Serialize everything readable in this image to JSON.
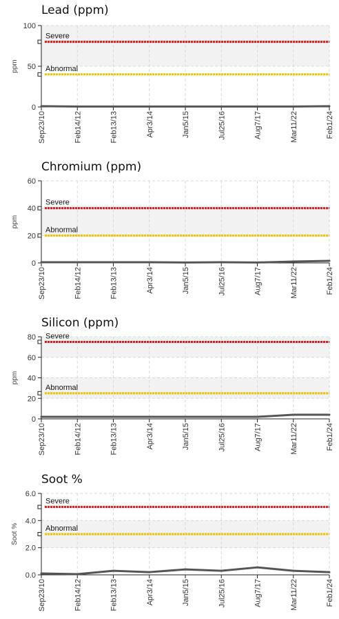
{
  "x_dates": [
    "Sep23/10",
    "Feb14/12",
    "Feb13/13",
    "Apr3/14",
    "Jan5/15",
    "Jul25/16",
    "Aug7/17",
    "Mar11/22",
    "Feb1/24"
  ],
  "colors": {
    "severe": "#e8161b",
    "abnormal": "#f2c200",
    "series": "#555555",
    "band": "#f2f2f2",
    "grid": "#d8d8d8"
  },
  "chart_data": [
    {
      "type": "line",
      "title": "Lead (ppm)",
      "ylabel": "ppm",
      "ylim": [
        0,
        100
      ],
      "yticks": [
        "0",
        "50",
        "100"
      ],
      "ytick_values": [
        0,
        50,
        100
      ],
      "categories": [
        "Sep23/10",
        "Feb14/12",
        "Feb13/13",
        "Apr3/14",
        "Jan5/15",
        "Jul25/16",
        "Aug7/17",
        "Mar11/22",
        "Feb1/24"
      ],
      "series": [
        {
          "values": [
            1,
            0.5,
            0.5,
            0.5,
            0.5,
            0.5,
            0.5,
            0.5,
            1
          ]
        }
      ],
      "thresholds": [
        {
          "label": "Severe",
          "value": 80,
          "level": "severe"
        },
        {
          "label": "Abnormal",
          "value": 40,
          "level": "abnormal"
        }
      ]
    },
    {
      "type": "line",
      "title": "Chromium (ppm)",
      "ylabel": "ppm",
      "ylim": [
        0,
        60
      ],
      "yticks": [
        "0",
        "20",
        "40",
        "60"
      ],
      "ytick_values": [
        0,
        20,
        40,
        60
      ],
      "categories": [
        "Sep23/10",
        "Feb14/12",
        "Feb13/13",
        "Apr3/14",
        "Jan5/15",
        "Jul25/16",
        "Aug7/17",
        "Mar11/22",
        "Feb1/24"
      ],
      "series": [
        {
          "values": [
            0.5,
            0.5,
            0.5,
            0.5,
            0.3,
            0.5,
            0.3,
            1,
            1.5
          ]
        }
      ],
      "thresholds": [
        {
          "label": "Severe",
          "value": 40,
          "level": "severe"
        },
        {
          "label": "Abnormal",
          "value": 20,
          "level": "abnormal"
        }
      ]
    },
    {
      "type": "line",
      "title": "Silicon (ppm)",
      "ylabel": "ppm",
      "ylim": [
        0,
        80
      ],
      "yticks": [
        "0",
        "20",
        "40",
        "60",
        "80"
      ],
      "ytick_values": [
        0,
        20,
        40,
        60,
        80
      ],
      "categories": [
        "Sep23/10",
        "Feb14/12",
        "Feb13/13",
        "Apr3/14",
        "Jan5/15",
        "Jul25/16",
        "Aug7/17",
        "Mar11/22",
        "Feb1/24"
      ],
      "series": [
        {
          "values": [
            2,
            2,
            2,
            2,
            2,
            2,
            2,
            4,
            4
          ]
        }
      ],
      "thresholds": [
        {
          "label": "Severe",
          "value": 75,
          "level": "severe"
        },
        {
          "label": "Abnormal",
          "value": 25,
          "level": "abnormal"
        }
      ]
    },
    {
      "type": "line",
      "title": "Soot %",
      "ylabel": "Soot %",
      "ylim": [
        0,
        6
      ],
      "yticks": [
        "0.0",
        "2.0",
        "4.0",
        "6.0"
      ],
      "ytick_values": [
        0,
        2,
        4,
        6
      ],
      "categories": [
        "Sep23/10",
        "Feb14/12",
        "Feb13/13",
        "Apr3/14",
        "Jan5/15",
        "Jul25/16",
        "Aug7/17",
        "Mar11/22",
        "Feb1/24"
      ],
      "series": [
        {
          "values": [
            0.1,
            0.05,
            0.3,
            0.2,
            0.4,
            0.3,
            0.55,
            0.3,
            0.2
          ]
        }
      ],
      "thresholds": [
        {
          "label": "Severe",
          "value": 5,
          "level": "severe"
        },
        {
          "label": "Abnormal",
          "value": 3,
          "level": "abnormal"
        }
      ]
    }
  ]
}
